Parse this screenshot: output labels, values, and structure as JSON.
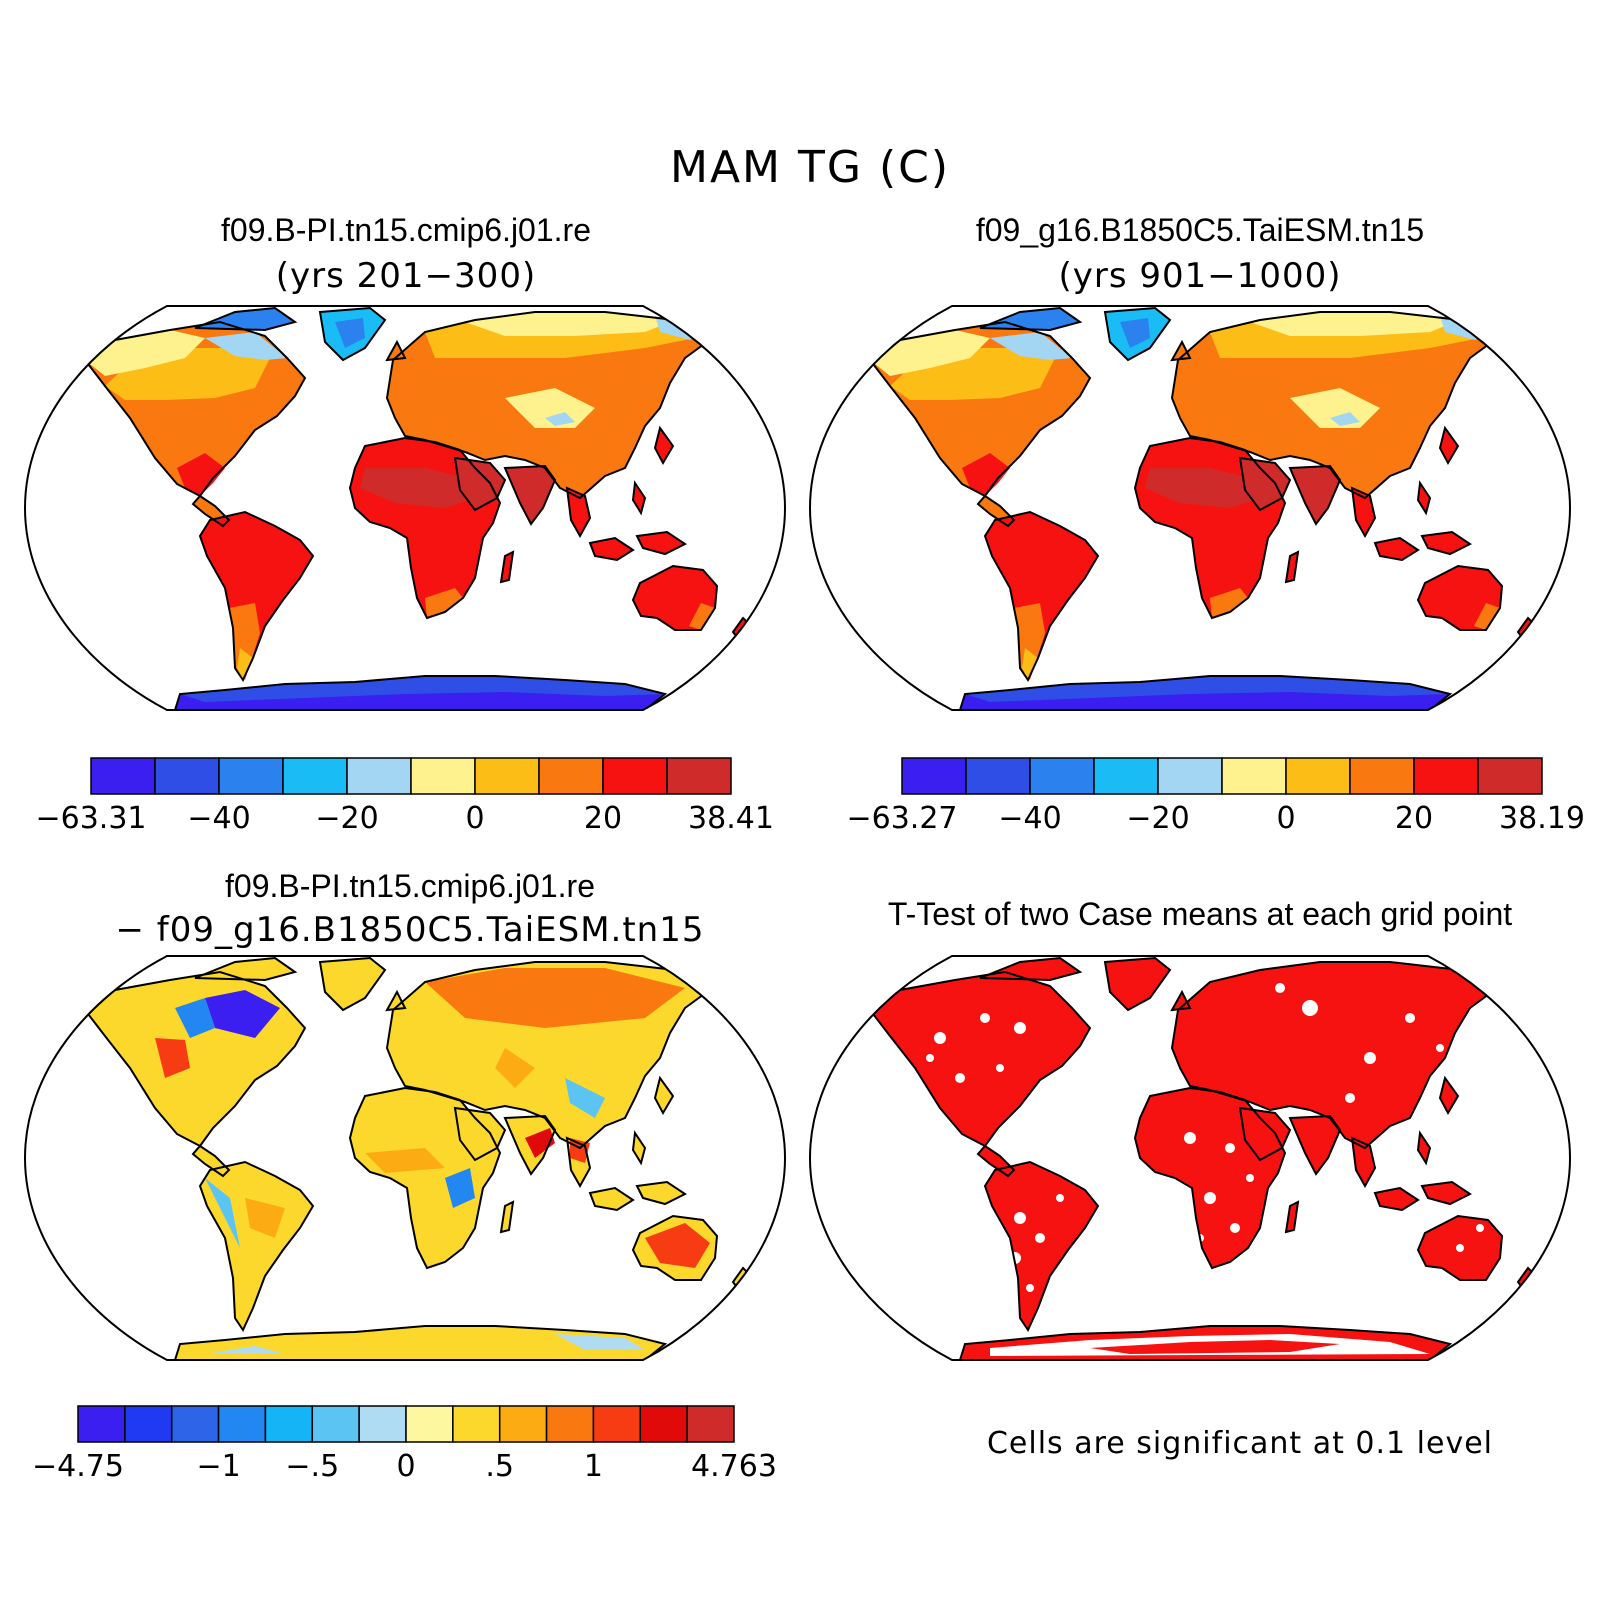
{
  "figure": {
    "title": "MAM TG (C)",
    "panels": [
      {
        "id": "case1",
        "title": "f09.B-PI.tn15.cmip6.j01.re",
        "subtitle": "(yrs 201−300)",
        "colorbar": {
          "colors": [
            "#3a1ff0",
            "#2e4ee6",
            "#2b82ee",
            "#1abcf6",
            "#a3d6f2",
            "#fdf28d",
            "#fcbd17",
            "#f97910",
            "#f71212",
            "#cf2b2b"
          ],
          "labels": [
            "−63.31",
            "−40",
            "−20",
            "0",
            "20",
            "38.41"
          ]
        }
      },
      {
        "id": "case2",
        "title": "f09_g16.B1850C5.TaiESM.tn15",
        "subtitle": "(yrs 901−1000)",
        "colorbar": {
          "colors": [
            "#3a1ff0",
            "#2e4ee6",
            "#2b82ee",
            "#1abcf6",
            "#a3d6f2",
            "#fdf28d",
            "#fcbd17",
            "#f97910",
            "#f71212",
            "#cf2b2b"
          ],
          "labels": [
            "−63.27",
            "−40",
            "−20",
            "0",
            "20",
            "38.19"
          ]
        }
      },
      {
        "id": "difference",
        "title": "f09.B-PI.tn15.cmip6.j01.re",
        "subtitle": "− f09_g16.B1850C5.TaiESM.tn15",
        "colorbar": {
          "colors": [
            "#3a1ff0",
            "#1f3af2",
            "#2e64e8",
            "#2287f0",
            "#14b4f7",
            "#5cc4f2",
            "#b0dcf3",
            "#fdf7a0",
            "#fcd82c",
            "#fcac12",
            "#f97910",
            "#f73b12",
            "#e00a0a",
            "#cf2b2b"
          ],
          "labels": [
            "−4.75",
            "−1",
            "−.5",
            "0",
            ".5",
            "1",
            "4.763"
          ]
        }
      },
      {
        "id": "ttest",
        "title": "T-Test of two Case means at each grid point",
        "note": "Cells are significant at 0.1 level"
      }
    ]
  }
}
